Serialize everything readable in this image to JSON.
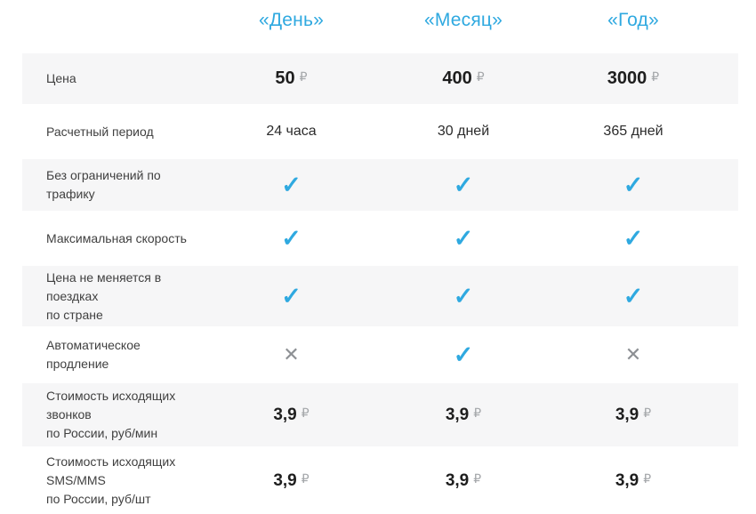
{
  "currency": "₽",
  "icons": {
    "check": "✓",
    "cross": "✕"
  },
  "colors": {
    "accent_blue": "#2fa9e0",
    "check_blue": "#2fa9e0",
    "cross_gray": "#8d9094",
    "ruble_gray": "#a4a7aa",
    "row_stripe_bg": "#f6f6f7",
    "price_text": "#1e1e1e",
    "label_text": "#404040"
  },
  "header": {
    "columns": [
      "«День»",
      "«Месяц»",
      "«Год»"
    ]
  },
  "rows": [
    {
      "label": "Цена",
      "type": "price",
      "values": [
        "50",
        "400",
        "3000"
      ]
    },
    {
      "label": "Расчетный период",
      "type": "text",
      "values": [
        "24 часа",
        "30 дней",
        "365 дней"
      ]
    },
    {
      "label": "Без ограничений по трафику",
      "type": "mark",
      "marks": [
        "check",
        "check",
        "check"
      ]
    },
    {
      "label": "Максимальная скорость",
      "type": "mark",
      "marks": [
        "check",
        "check",
        "check"
      ]
    },
    {
      "label": "Цена не меняется в поездках\nпо стране",
      "type": "mark",
      "marks": [
        "check",
        "check",
        "check"
      ]
    },
    {
      "label": "Автоматическое продление",
      "type": "mark",
      "marks": [
        "cross",
        "check",
        "cross"
      ]
    },
    {
      "label": "Стоимость исходящих звонков\nпо России, руб/мин",
      "type": "price",
      "values": [
        "3,9",
        "3,9",
        "3,9"
      ]
    },
    {
      "label": "Стоимость исходящих SMS/MMS\nпо России, руб/шт",
      "type": "price",
      "values": [
        "3,9",
        "3,9",
        "3,9"
      ]
    }
  ]
}
